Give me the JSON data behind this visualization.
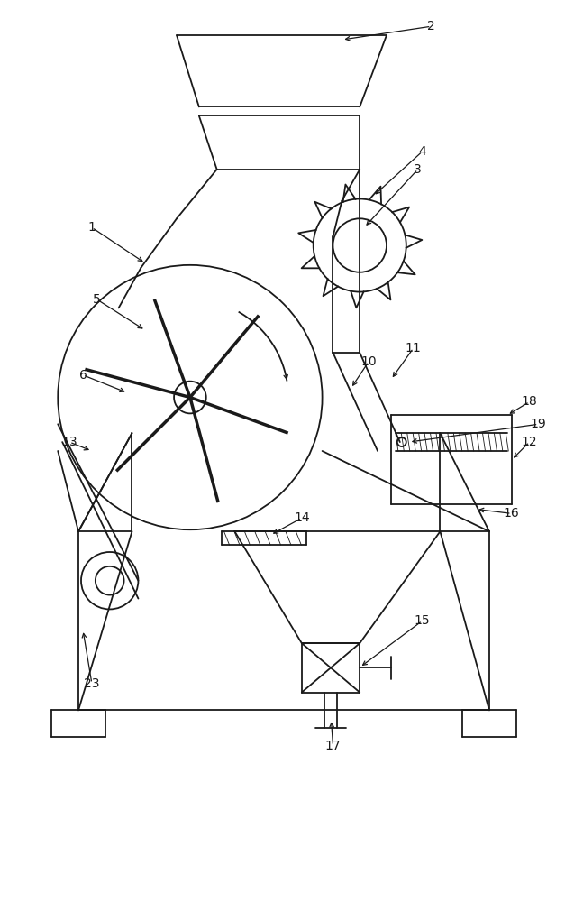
{
  "bg_color": "#ffffff",
  "line_color": "#1a1a1a",
  "lw": 1.3,
  "fig_w": 6.27,
  "fig_h": 10.0
}
